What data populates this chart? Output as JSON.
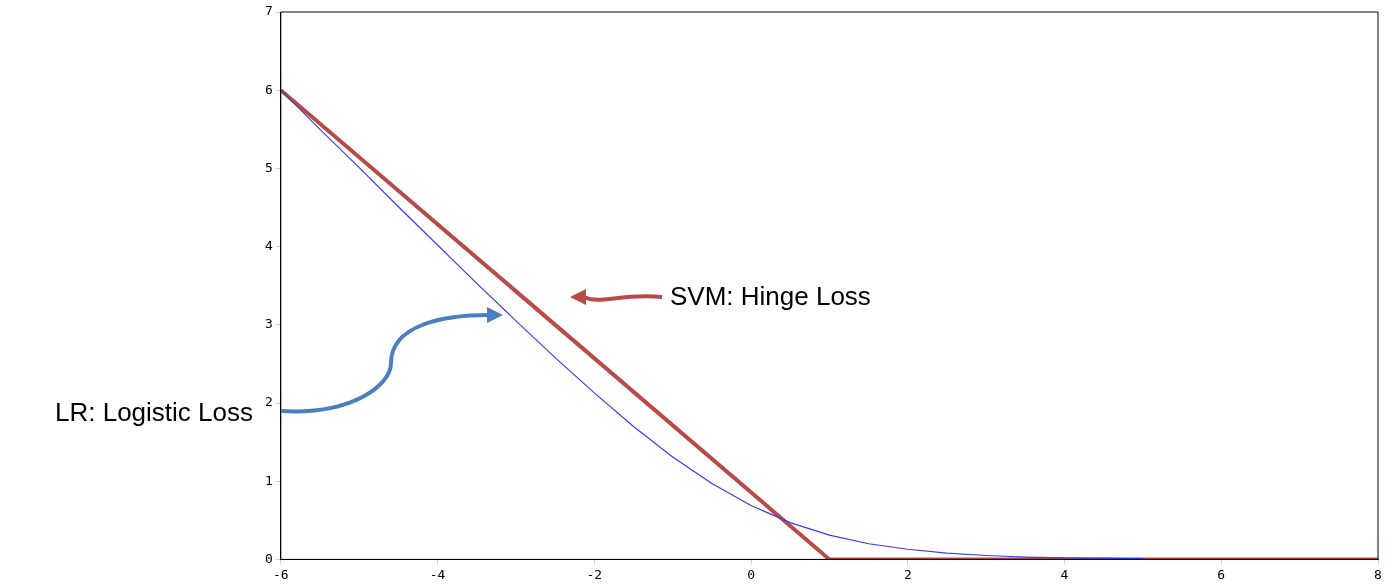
{
  "chart_data": {
    "type": "line",
    "xlim": [
      -6,
      8
    ],
    "xticks": [
      -6,
      -4,
      -2,
      0,
      2,
      4,
      6,
      8
    ],
    "ylim": [
      0,
      7
    ],
    "yticks": [
      0,
      1,
      2,
      3,
      4,
      5,
      6,
      7
    ],
    "grid": false,
    "legend": false,
    "marker": "none",
    "line_style": "solid",
    "series": [
      {
        "color": "#3c3cf0",
        "x": [
          -6,
          -5.5,
          -5,
          -4.5,
          -4,
          -3.5,
          -3,
          -2.5,
          -2,
          -1.5,
          -1,
          -0.5,
          0,
          0.5,
          1,
          1.5,
          2,
          2.5,
          3,
          3.5,
          4,
          5
        ],
        "values": [
          6.0,
          5.5,
          5.01,
          4.51,
          4.02,
          3.53,
          3.05,
          2.58,
          2.13,
          1.7,
          1.31,
          0.97,
          0.69,
          0.47,
          0.31,
          0.2,
          0.13,
          0.08,
          0.05,
          0.03,
          0.02,
          0.01
        ]
      },
      {
        "color": "#b84a4a",
        "x": [
          -6,
          1,
          8
        ],
        "values": [
          6,
          0,
          0
        ]
      }
    ],
    "annotations": [
      "SVM: Hinge Loss",
      "LR: Logistic Loss"
    ]
  }
}
